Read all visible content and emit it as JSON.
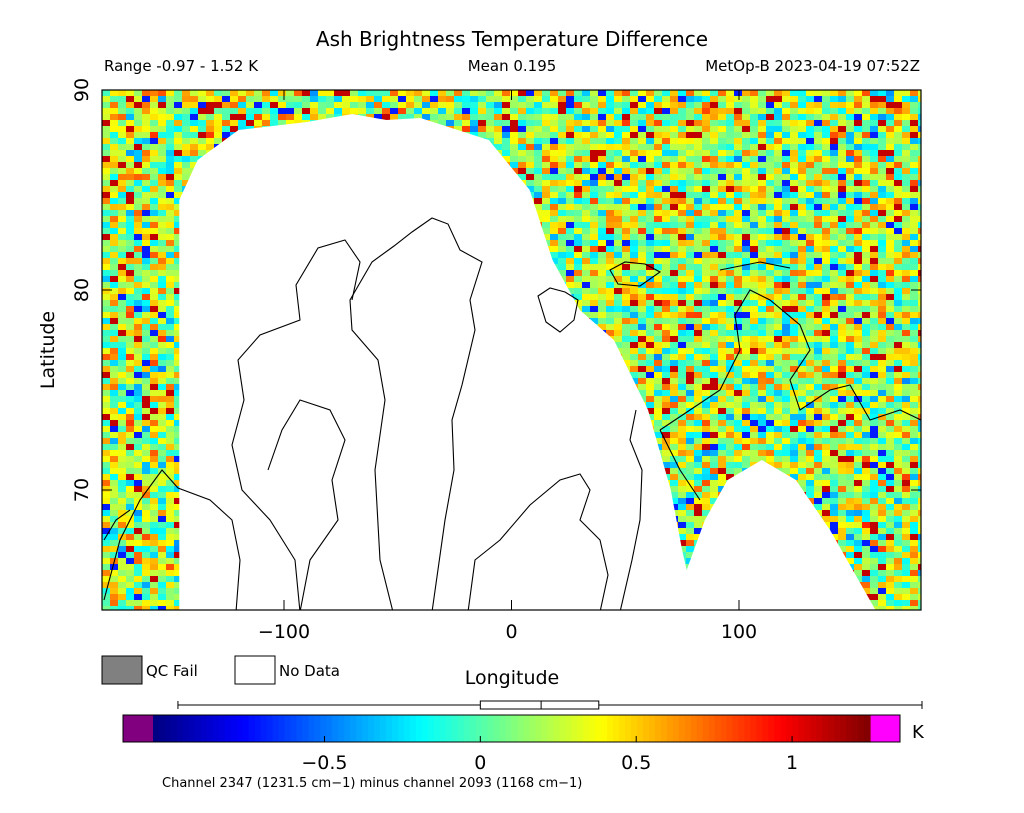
{
  "chart_data": {
    "type": "heatmap",
    "title": "Ash Brightness Temperature Difference",
    "range_label": "Range -0.97 - 1.52 K",
    "mean_label": "Mean 0.195",
    "satellite_label": "MetOp-B 2023-04-19 07:52Z",
    "xlabel": "Longitude",
    "ylabel": "Latitude",
    "xlim": [
      -180,
      180
    ],
    "ylim": [
      64,
      90
    ],
    "x_ticks": [
      {
        "value": -100,
        "label": "−100"
      },
      {
        "value": 0,
        "label": "0"
      },
      {
        "value": 100,
        "label": "100"
      }
    ],
    "y_ticks": [
      {
        "value": 70,
        "label": "70"
      },
      {
        "value": 80,
        "label": "80"
      },
      {
        "value": 90,
        "label": "90"
      }
    ],
    "legend": [
      {
        "label": "QC Fail",
        "color": "#808080"
      },
      {
        "label": "No Data",
        "color": "#ffffff"
      }
    ],
    "colorbar": {
      "min": -1.05,
      "max": 1.25,
      "unit": "K",
      "ticks": [
        {
          "value": -0.5,
          "label": "−0.5"
        },
        {
          "value": 0,
          "label": "0"
        },
        {
          "value": 0.5,
          "label": "0.5"
        },
        {
          "value": 1,
          "label": "1"
        }
      ],
      "under_color": "#800080",
      "over_color": "#ff00ff",
      "boxplot": {
        "whisker_low": -0.97,
        "q1": 0.0,
        "median": 0.195,
        "q3": 0.38,
        "whisker_high": 1.52
      }
    },
    "footnote": "Channel 2347 (1231.5 cm−1) minus channel 2093 (1168 cm−1)",
    "no_data_regions": [
      {
        "name": "greenland-canada-gap",
        "lon": [
          -146,
          -146,
          -138,
          -120,
          -90,
          -70,
          -55,
          -40,
          -10,
          8,
          18,
          30,
          45,
          60,
          70,
          75,
          77,
          85,
          95,
          110,
          125,
          140,
          160,
          -146
        ],
        "lat": [
          64,
          84.5,
          86.5,
          88,
          88.4,
          88.8,
          88.5,
          88.6,
          87.5,
          85,
          81.5,
          79,
          77.5,
          74,
          70,
          67,
          66,
          68.5,
          70.5,
          71.5,
          70.5,
          68,
          64,
          64
        ]
      }
    ]
  }
}
